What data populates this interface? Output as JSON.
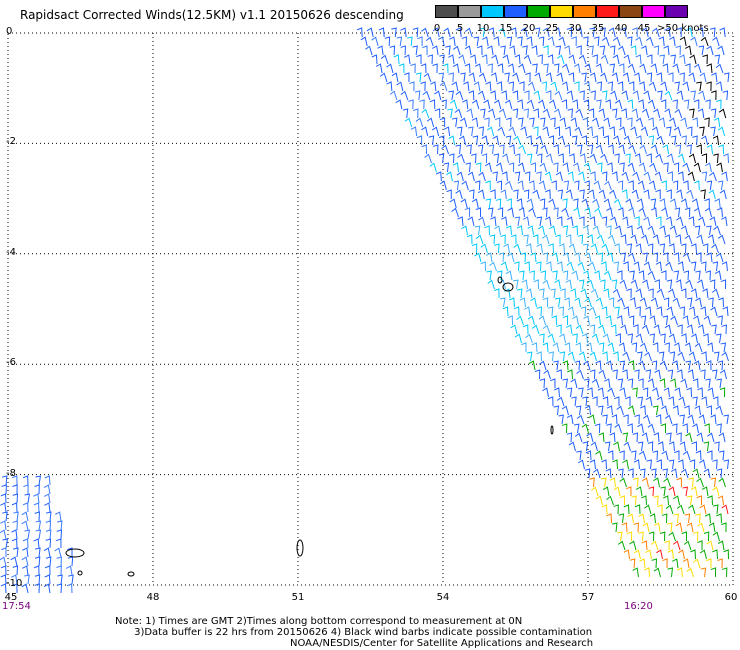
{
  "title": "Rapidsact Corrected Winds(12.5KM) v1.1 20150626 descending",
  "legend": {
    "labels": [
      "0",
      "5",
      "10",
      "15",
      "20",
      "25",
      "30",
      "35",
      "40",
      "45",
      ">50 knots"
    ],
    "colors": [
      "#4d4d4d",
      "#9a9a9a",
      "#00c8ff",
      "#1f5fff",
      "#00aa00",
      "#ffdc00",
      "#ff8000",
      "#ff1a1a",
      "#8b4513",
      "#ff00ff",
      "#6a00b0"
    ]
  },
  "axes": {
    "x_ticks": [
      "45",
      "48",
      "51",
      "54",
      "57",
      "60"
    ],
    "y_ticks": [
      "0",
      "-2",
      "-4",
      "-6",
      "-8",
      "-10"
    ],
    "x_range": [
      45,
      60
    ],
    "y_range": [
      -10,
      0
    ]
  },
  "times": {
    "left": "17:54",
    "right": "16:20"
  },
  "notes": [
    "Note: 1) Times are GMT 2)Times along bottom correspond to measurement at 0N",
    "3)Data buffer is 22 hrs from 20150626 4) Black wind barbs indicate possible contamination"
  ],
  "credit": "NOAA/NESDIS/Center for Satellite Applications and Research"
}
